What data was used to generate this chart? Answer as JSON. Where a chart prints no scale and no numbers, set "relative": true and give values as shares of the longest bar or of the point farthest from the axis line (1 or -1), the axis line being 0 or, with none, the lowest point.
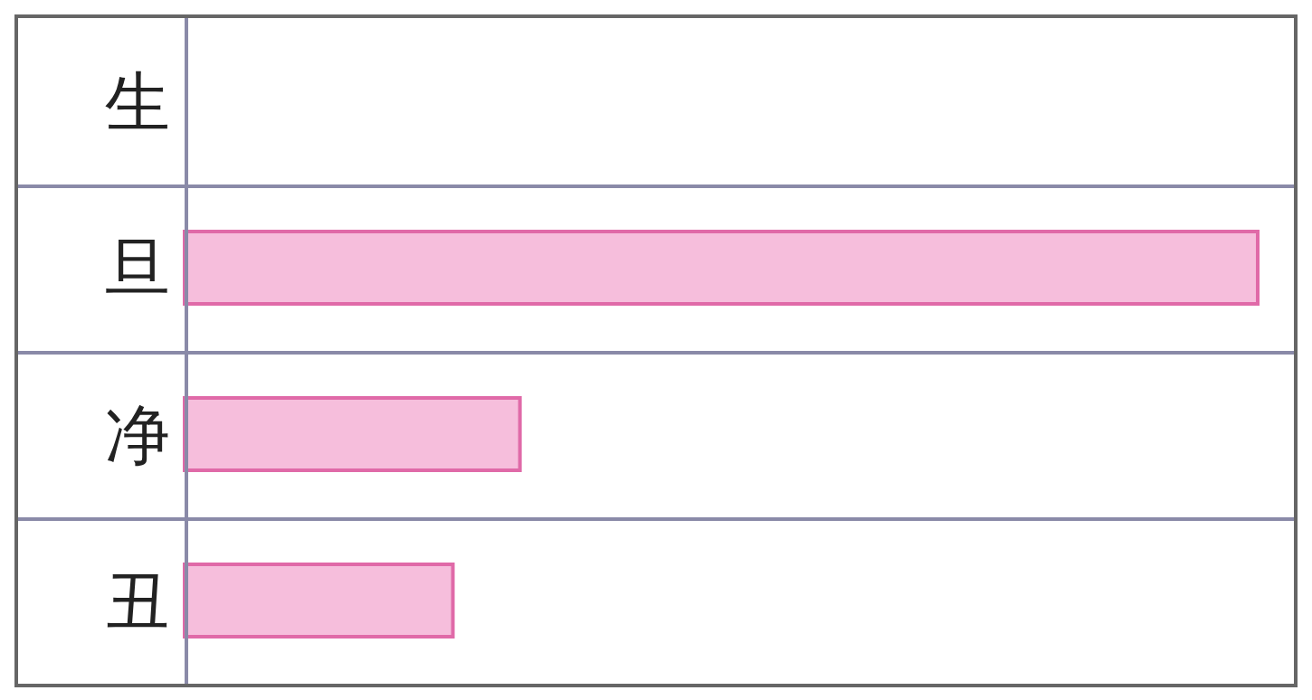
{
  "chart_data": {
    "type": "bar",
    "orientation": "horizontal",
    "relative": true,
    "categories": [
      "生",
      "旦",
      "净",
      "丑"
    ],
    "values": [
      0,
      1,
      0.3125,
      0.25
    ],
    "color": "#f6bedc"
  }
}
